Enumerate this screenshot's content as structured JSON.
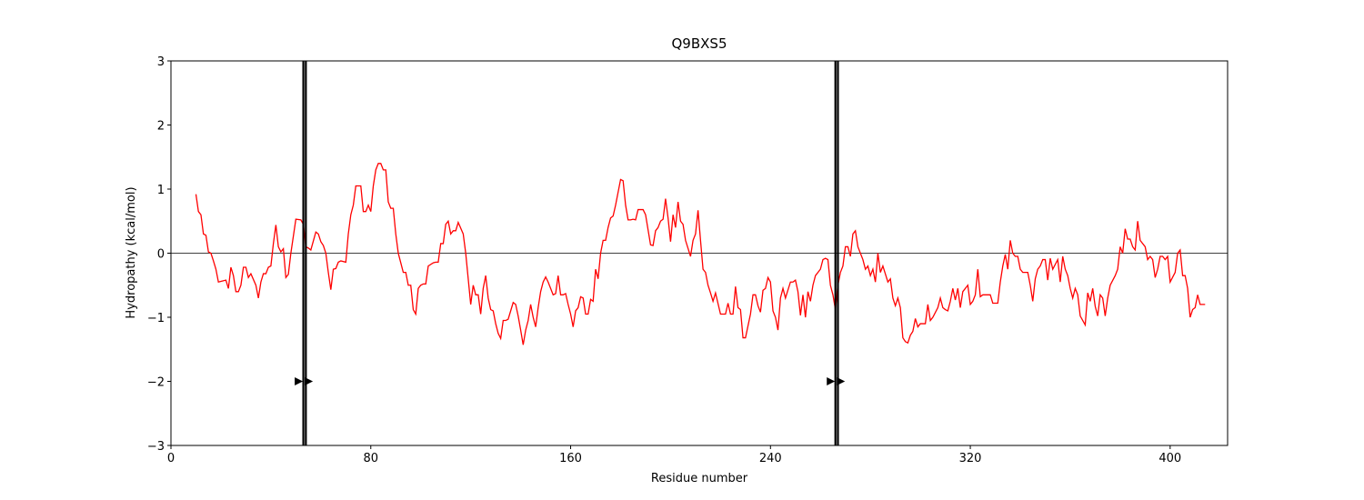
{
  "chart_data": {
    "type": "line",
    "title": "Q9BXS5",
    "x_label": "Residue number",
    "y_label": "Hydropathy (kcal/mol)",
    "xlim": [
      0,
      423
    ],
    "ylim": [
      -3,
      3
    ],
    "xticks": [
      0,
      80,
      160,
      240,
      320,
      400
    ],
    "yticks": [
      {
        "value": -3,
        "label": "−3"
      },
      {
        "value": -2,
        "label": "−2"
      },
      {
        "value": -1,
        "label": "−1"
      },
      0,
      1,
      2,
      3
    ],
    "hline": 0,
    "vlines": [
      53,
      54,
      266,
      267
    ],
    "vline_color": "#000000",
    "markers": {
      "x": [
        51,
        55,
        264,
        268
      ],
      "y": [
        -2,
        -2,
        -2,
        -2
      ],
      "color": "#000000"
    },
    "x": [
      10,
      11,
      12,
      13,
      14,
      15,
      16,
      17,
      18,
      19,
      20,
      22,
      23,
      24,
      25,
      26,
      27,
      28,
      29,
      30,
      31,
      32,
      34,
      35,
      36,
      37,
      38,
      39,
      40,
      41,
      42,
      43,
      44,
      45,
      46,
      47,
      48,
      50,
      52,
      53,
      54,
      55,
      56,
      58,
      59,
      60,
      61,
      62,
      63,
      64,
      65,
      66,
      67,
      68,
      70,
      71,
      72,
      73,
      74,
      76,
      77,
      78,
      79,
      80,
      81,
      82,
      83,
      84,
      85,
      86,
      87,
      88,
      89,
      90,
      91,
      92,
      93,
      94,
      95,
      96,
      97,
      98,
      99,
      100,
      101,
      102,
      103,
      105,
      106,
      107,
      108,
      109,
      110,
      111,
      112,
      113,
      114,
      115,
      117,
      118,
      119,
      120,
      121,
      122,
      123,
      124,
      125,
      126,
      127,
      128,
      129,
      130,
      131,
      132,
      133,
      134,
      135,
      137,
      138,
      139,
      140,
      141,
      142,
      143,
      144,
      145,
      146,
      147,
      148,
      149,
      150,
      151,
      153,
      154,
      155,
      156,
      157,
      158,
      159,
      160,
      161,
      162,
      163,
      164,
      165,
      166,
      167,
      168,
      169,
      170,
      171,
      172,
      173,
      174,
      175,
      176,
      177,
      178,
      180,
      181,
      182,
      183,
      184,
      185,
      186,
      187,
      188,
      189,
      190,
      192,
      193,
      194,
      195,
      196,
      197,
      198,
      199,
      200,
      201,
      202,
      203,
      204,
      205,
      206,
      208,
      209,
      210,
      211,
      212,
      213,
      214,
      215,
      216,
      217,
      218,
      220,
      221,
      222,
      223,
      224,
      225,
      226,
      227,
      228,
      229,
      230,
      232,
      233,
      234,
      235,
      236,
      237,
      238,
      239,
      240,
      241,
      242,
      243,
      244,
      245,
      246,
      248,
      249,
      250,
      251,
      252,
      253,
      254,
      255,
      256,
      257,
      258,
      260,
      261,
      262,
      263,
      264,
      265,
      266,
      267,
      268,
      269,
      270,
      271,
      272,
      273,
      274,
      275,
      276,
      277,
      278,
      279,
      280,
      281,
      282,
      283,
      284,
      285,
      287,
      288,
      289,
      290,
      291,
      292,
      293,
      294,
      295,
      296,
      297,
      298,
      299,
      300,
      301,
      302,
      303,
      304,
      305,
      307,
      308,
      309,
      310,
      311,
      312,
      313,
      314,
      315,
      316,
      317,
      319,
      320,
      321,
      322,
      323,
      324,
      325,
      326,
      327,
      328,
      329,
      331,
      332,
      333,
      334,
      335,
      336,
      337,
      338,
      339,
      340,
      341,
      343,
      344,
      345,
      346,
      347,
      348,
      349,
      350,
      351,
      352,
      353,
      355,
      356,
      357,
      358,
      359,
      360,
      361,
      362,
      363,
      364,
      366,
      367,
      368,
      369,
      370,
      371,
      372,
      373,
      374,
      375,
      376,
      378,
      379,
      380,
      381,
      382,
      383,
      384,
      385,
      386,
      387,
      388,
      390,
      391,
      392,
      393,
      394,
      395,
      396,
      397,
      398,
      399,
      400,
      402,
      403,
      404,
      405,
      406,
      407,
      408,
      409,
      410,
      411,
      412,
      413,
      414
    ],
    "series": [
      {
        "name": "hydropathy",
        "color": "#ff0000",
        "values": [
          0.92,
          0.65,
          0.6,
          0.3,
          0.28,
          0.02,
          0.0,
          -0.12,
          -0.25,
          -0.45,
          -0.44,
          -0.42,
          -0.55,
          -0.22,
          -0.35,
          -0.6,
          -0.6,
          -0.5,
          -0.22,
          -0.22,
          -0.38,
          -0.32,
          -0.5,
          -0.7,
          -0.45,
          -0.32,
          -0.32,
          -0.22,
          -0.2,
          0.15,
          0.44,
          0.1,
          0.02,
          0.07,
          -0.38,
          -0.33,
          0.0,
          0.53,
          0.52,
          0.45,
          0.1,
          0.08,
          0.05,
          0.33,
          0.3,
          0.18,
          0.12,
          0.0,
          -0.3,
          -0.57,
          -0.25,
          -0.24,
          -0.14,
          -0.12,
          -0.14,
          0.3,
          0.6,
          0.75,
          1.05,
          1.05,
          0.65,
          0.65,
          0.75,
          0.65,
          1.05,
          1.3,
          1.4,
          1.4,
          1.3,
          1.3,
          0.8,
          0.7,
          0.7,
          0.3,
          0.0,
          -0.15,
          -0.3,
          -0.3,
          -0.5,
          -0.5,
          -0.88,
          -0.95,
          -0.55,
          -0.5,
          -0.48,
          -0.48,
          -0.2,
          -0.15,
          -0.14,
          -0.14,
          0.15,
          0.15,
          0.45,
          0.5,
          0.3,
          0.35,
          0.35,
          0.48,
          0.3,
          0.0,
          -0.4,
          -0.8,
          -0.5,
          -0.65,
          -0.65,
          -0.95,
          -0.55,
          -0.35,
          -0.7,
          -0.88,
          -0.9,
          -1.1,
          -1.25,
          -1.33,
          -1.05,
          -1.05,
          -1.03,
          -0.77,
          -0.8,
          -0.98,
          -1.2,
          -1.43,
          -1.2,
          -1.05,
          -0.8,
          -1.0,
          -1.15,
          -0.85,
          -0.6,
          -0.45,
          -0.37,
          -0.45,
          -0.65,
          -0.63,
          -0.35,
          -0.65,
          -0.65,
          -0.63,
          -0.8,
          -0.95,
          -1.15,
          -0.9,
          -0.85,
          -0.68,
          -0.7,
          -0.95,
          -0.95,
          -0.72,
          -0.75,
          -0.25,
          -0.4,
          0.0,
          0.2,
          0.2,
          0.4,
          0.55,
          0.58,
          0.75,
          1.15,
          1.13,
          0.75,
          0.52,
          0.52,
          0.53,
          0.52,
          0.68,
          0.68,
          0.68,
          0.6,
          0.13,
          0.12,
          0.35,
          0.4,
          0.5,
          0.53,
          0.85,
          0.55,
          0.18,
          0.6,
          0.4,
          0.8,
          0.5,
          0.45,
          0.2,
          -0.05,
          0.2,
          0.3,
          0.67,
          0.2,
          -0.25,
          -0.3,
          -0.5,
          -0.62,
          -0.75,
          -0.62,
          -0.95,
          -0.95,
          -0.95,
          -0.78,
          -0.95,
          -0.95,
          -0.52,
          -0.85,
          -0.88,
          -1.32,
          -1.32,
          -0.95,
          -0.65,
          -0.65,
          -0.82,
          -0.92,
          -0.58,
          -0.55,
          -0.38,
          -0.45,
          -0.9,
          -1.0,
          -1.2,
          -0.7,
          -0.55,
          -0.7,
          -0.45,
          -0.45,
          -0.42,
          -0.6,
          -0.97,
          -0.65,
          -1.0,
          -0.6,
          -0.75,
          -0.5,
          -0.35,
          -0.25,
          -0.1,
          -0.08,
          -0.1,
          -0.5,
          -0.65,
          -0.88,
          -0.5,
          -0.3,
          -0.2,
          0.1,
          0.1,
          -0.05,
          0.3,
          0.35,
          0.1,
          0.0,
          -0.1,
          -0.25,
          -0.2,
          -0.35,
          -0.25,
          -0.45,
          0.0,
          -0.3,
          -0.2,
          -0.45,
          -0.4,
          -0.7,
          -0.82,
          -0.7,
          -0.85,
          -1.32,
          -1.38,
          -1.4,
          -1.28,
          -1.22,
          -1.02,
          -1.15,
          -1.1,
          -1.1,
          -1.1,
          -0.8,
          -1.05,
          -1.0,
          -0.85,
          -0.7,
          -0.85,
          -0.88,
          -0.9,
          -0.75,
          -0.55,
          -0.73,
          -0.55,
          -0.85,
          -0.6,
          -0.5,
          -0.8,
          -0.75,
          -0.65,
          -0.25,
          -0.68,
          -0.65,
          -0.65,
          -0.65,
          -0.65,
          -0.78,
          -0.78,
          -0.45,
          -0.2,
          -0.02,
          -0.25,
          0.2,
          0.0,
          -0.05,
          -0.05,
          -0.25,
          -0.3,
          -0.3,
          -0.5,
          -0.75,
          -0.4,
          -0.25,
          -0.2,
          -0.1,
          -0.1,
          -0.42,
          -0.08,
          -0.25,
          -0.1,
          -0.45,
          -0.05,
          -0.25,
          -0.35,
          -0.55,
          -0.7,
          -0.55,
          -0.65,
          -0.98,
          -1.12,
          -0.62,
          -0.75,
          -0.55,
          -0.83,
          -0.98,
          -0.65,
          -0.7,
          -0.98,
          -0.7,
          -0.5,
          -0.35,
          -0.25,
          0.1,
          0.0,
          0.38,
          0.22,
          0.22,
          0.1,
          0.05,
          0.5,
          0.2,
          0.1,
          -0.1,
          -0.05,
          -0.1,
          -0.38,
          -0.25,
          -0.05,
          -0.05,
          -0.1,
          -0.05,
          -0.45,
          -0.3,
          0.0,
          0.05,
          -0.35,
          -0.35,
          -0.55,
          -1.0,
          -0.88,
          -0.85,
          -0.65,
          -0.8,
          -0.8,
          -0.8
        ]
      }
    ]
  }
}
